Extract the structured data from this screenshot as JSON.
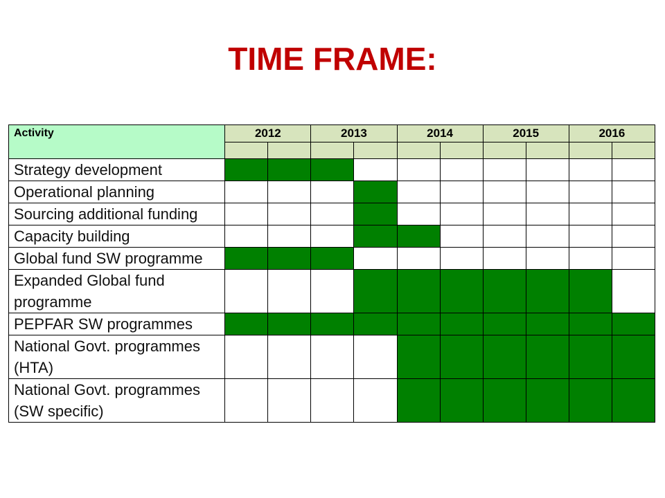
{
  "title": "TIME FRAME:",
  "table": {
    "activity_header": "Activity",
    "years": [
      "2012",
      "2013",
      "2014",
      "2015",
      "2016"
    ],
    "periods_per_year": 2,
    "active_color": "#008000",
    "header_activity_color": "#b6fbc8",
    "header_year_color": "#d7e4bd",
    "rows": [
      {
        "label": "Strategy development",
        "active": [
          1,
          1,
          1,
          0,
          0,
          0,
          0,
          0,
          0,
          0
        ]
      },
      {
        "label": "Operational planning",
        "active": [
          0,
          0,
          0,
          1,
          0,
          0,
          0,
          0,
          0,
          0
        ]
      },
      {
        "label": "Sourcing additional funding",
        "active": [
          0,
          0,
          0,
          1,
          0,
          0,
          0,
          0,
          0,
          0
        ]
      },
      {
        "label": "Capacity building",
        "active": [
          0,
          0,
          0,
          1,
          1,
          0,
          0,
          0,
          0,
          0
        ]
      },
      {
        "label": "Global fund SW programme",
        "active": [
          1,
          1,
          1,
          0,
          0,
          0,
          0,
          0,
          0,
          0
        ]
      },
      {
        "label": "Expanded Global fund programme",
        "active": [
          0,
          0,
          0,
          1,
          1,
          1,
          1,
          1,
          1,
          0
        ]
      },
      {
        "label": "PEPFAR SW programmes",
        "active": [
          1,
          1,
          1,
          1,
          1,
          1,
          1,
          1,
          1,
          1
        ]
      },
      {
        "label": "National Govt. programmes (HTA)",
        "active": [
          0,
          0,
          0,
          0,
          1,
          1,
          1,
          1,
          1,
          1
        ]
      },
      {
        "label": "National Govt. programmes (SW specific)",
        "active": [
          0,
          0,
          0,
          0,
          1,
          1,
          1,
          1,
          1,
          1
        ]
      }
    ]
  }
}
